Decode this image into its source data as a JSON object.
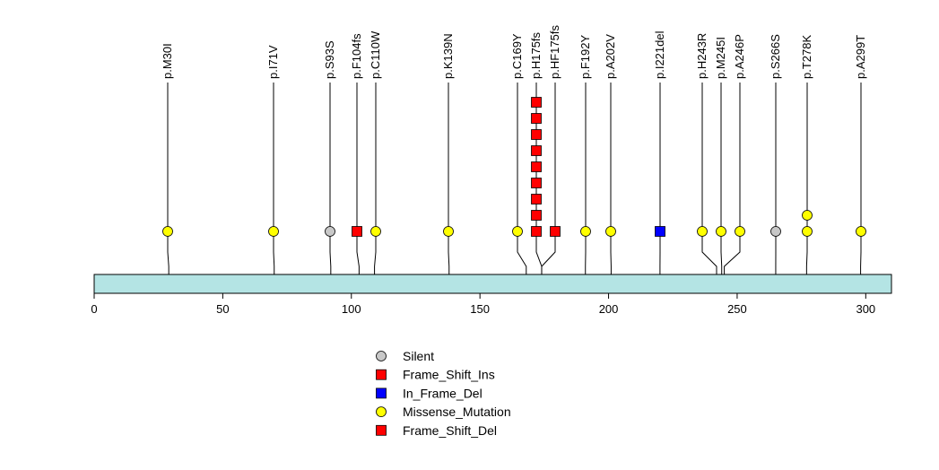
{
  "chart_data": {
    "type": "lollipop",
    "xlim": [
      0,
      310
    ],
    "xticks": [
      0,
      50,
      100,
      150,
      200,
      250,
      300
    ],
    "colors": {
      "protein": "#b4e4e4",
      "Silent": "#c8c8c8",
      "Frame_Shift_Ins": "#ff0000",
      "In_Frame_Del": "#0000ff",
      "Missense_Mutation": "#ffff00",
      "Frame_Shift_Del": "#ff0000"
    },
    "mutations": [
      {
        "label": "p.M30I",
        "pos": 29,
        "lollipops": [
          {
            "type": "Missense_Mutation",
            "count": 1
          }
        ]
      },
      {
        "label": "p.I71V",
        "pos": 70,
        "lollipops": [
          {
            "type": "Missense_Mutation",
            "count": 1
          }
        ]
      },
      {
        "label": "p.S93S",
        "pos": 92,
        "lollipops": [
          {
            "type": "Silent",
            "count": 1
          }
        ]
      },
      {
        "label": "p.F104fs",
        "pos": 103,
        "lollipops": [
          {
            "type": "Frame_Shift_Del",
            "count": 1
          }
        ]
      },
      {
        "label": "p.C110W",
        "pos": 109,
        "lollipops": [
          {
            "type": "Missense_Mutation",
            "count": 1
          }
        ]
      },
      {
        "label": "p.K139N",
        "pos": 138,
        "lollipops": [
          {
            "type": "Missense_Mutation",
            "count": 1
          }
        ]
      },
      {
        "label": "p.C169Y",
        "pos": 168,
        "lollipops": [
          {
            "type": "Missense_Mutation",
            "count": 1
          }
        ]
      },
      {
        "label": "p.H175fs",
        "pos": 174,
        "lollipops": [
          {
            "type": "Frame_Shift_Ins",
            "count": 9
          }
        ]
      },
      {
        "label": "p.HF175fs",
        "pos": 174,
        "lollipops": [
          {
            "type": "Frame_Shift_Del",
            "count": 1
          }
        ]
      },
      {
        "label": "p.F192Y",
        "pos": 191,
        "lollipops": [
          {
            "type": "Missense_Mutation",
            "count": 1
          }
        ]
      },
      {
        "label": "p.A202V",
        "pos": 201,
        "lollipops": [
          {
            "type": "Missense_Mutation",
            "count": 1
          }
        ]
      },
      {
        "label": "p.I221del",
        "pos": 220,
        "lollipops": [
          {
            "type": "In_Frame_Del",
            "count": 1
          }
        ]
      },
      {
        "label": "p.H243R",
        "pos": 242,
        "lollipops": [
          {
            "type": "Missense_Mutation",
            "count": 1
          }
        ]
      },
      {
        "label": "p.M245I",
        "pos": 244,
        "lollipops": [
          {
            "type": "Missense_Mutation",
            "count": 1
          }
        ]
      },
      {
        "label": "p.A246P",
        "pos": 245,
        "lollipops": [
          {
            "type": "Missense_Mutation",
            "count": 1
          }
        ]
      },
      {
        "label": "p.S266S",
        "pos": 265,
        "lollipops": [
          {
            "type": "Silent",
            "count": 1
          }
        ]
      },
      {
        "label": "p.T278K",
        "pos": 277,
        "lollipops": [
          {
            "type": "Missense_Mutation",
            "count": 2
          }
        ]
      },
      {
        "label": "p.A299T",
        "pos": 298,
        "lollipops": [
          {
            "type": "Missense_Mutation",
            "count": 1
          }
        ]
      }
    ],
    "legend": [
      {
        "label": "Silent",
        "shape": "circle",
        "type": "Silent"
      },
      {
        "label": "Frame_Shift_Ins",
        "shape": "square",
        "type": "Frame_Shift_Ins"
      },
      {
        "label": "In_Frame_Del",
        "shape": "square",
        "type": "In_Frame_Del"
      },
      {
        "label": "Missense_Mutation",
        "shape": "circle",
        "type": "Missense_Mutation"
      },
      {
        "label": "Frame_Shift_Del",
        "shape": "square",
        "type": "Frame_Shift_Del"
      }
    ]
  }
}
